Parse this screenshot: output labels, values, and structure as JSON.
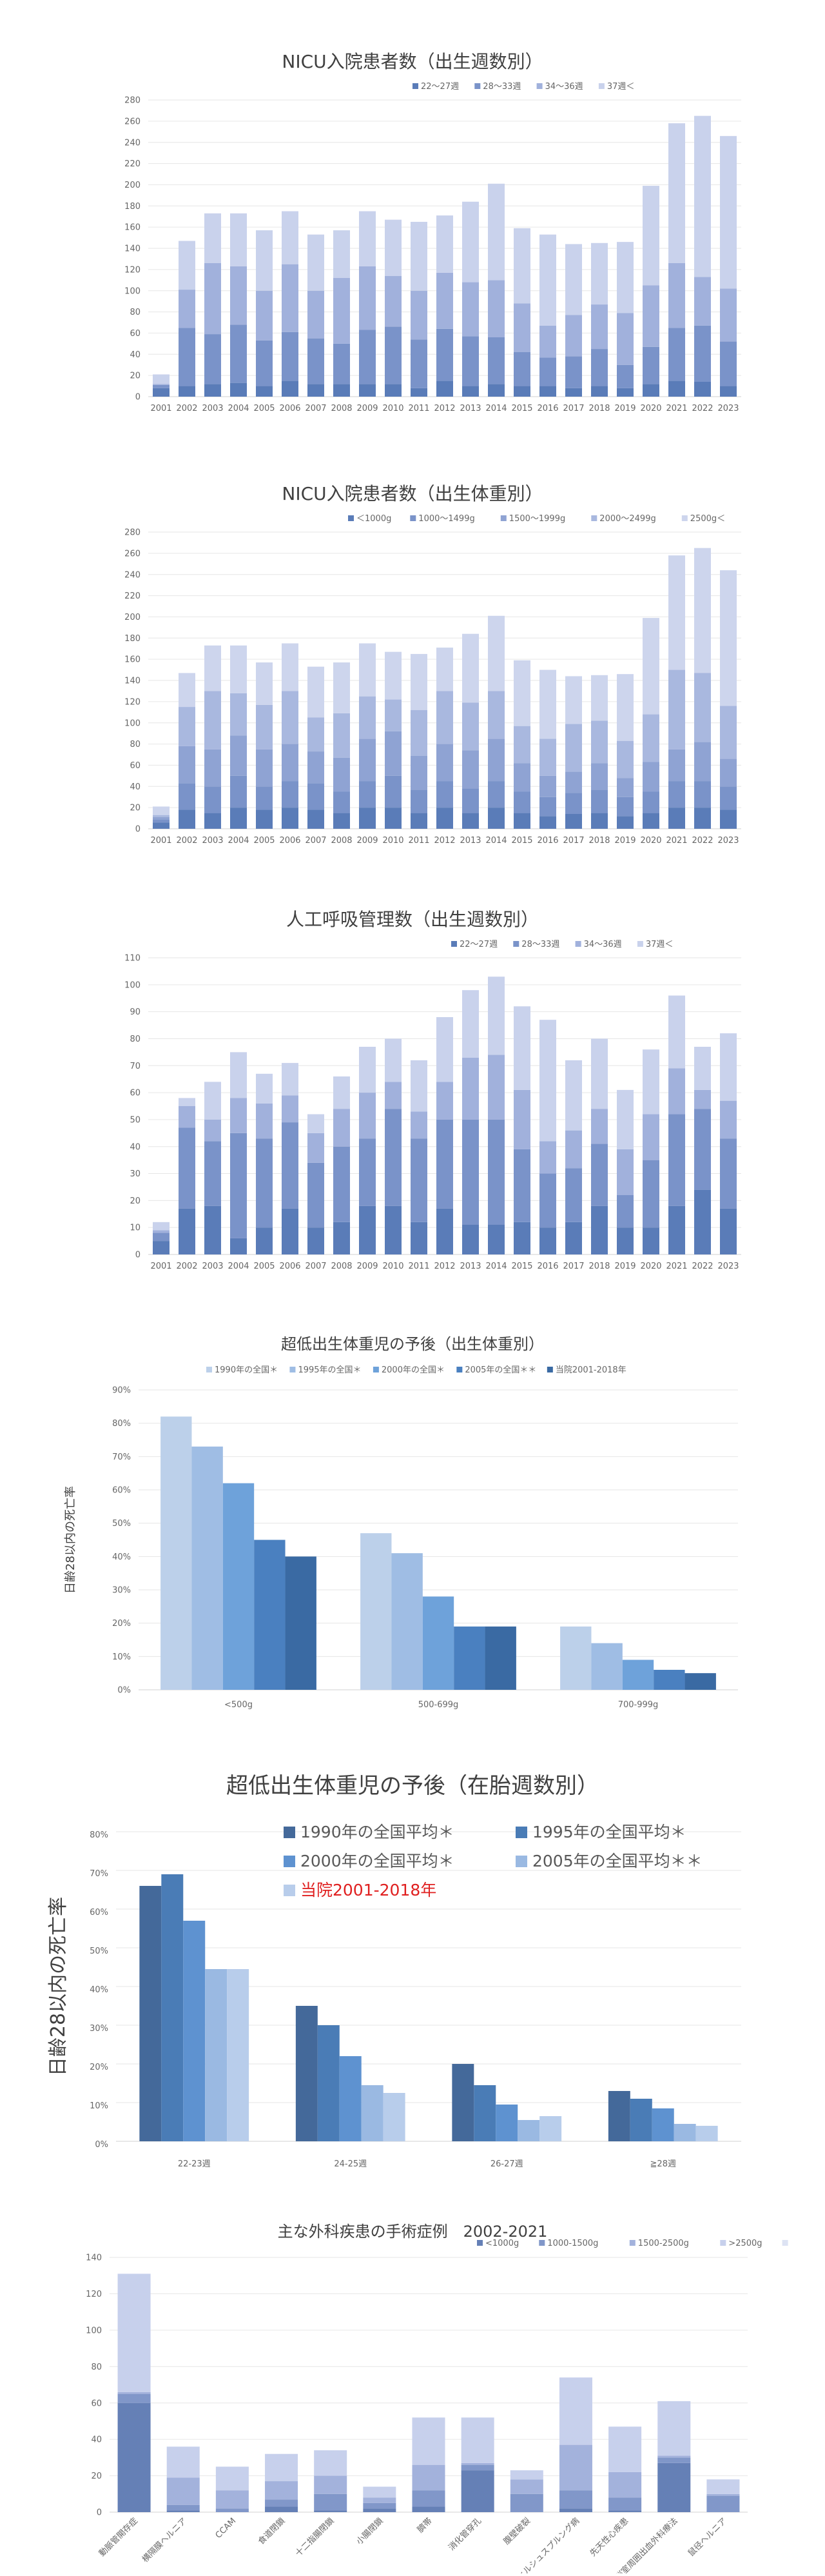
{
  "chart_data": [
    {
      "id": "c1",
      "type": "bar",
      "stacked": true,
      "title": "NICU入院患者数（出生週数別）",
      "xlabel": "",
      "ylabel": "",
      "ylim": [
        0,
        280
      ],
      "yticks": [
        0,
        20,
        40,
        60,
        80,
        100,
        120,
        140,
        160,
        180,
        200,
        220,
        240,
        260,
        280
      ],
      "grid": true,
      "legend_position": "top-right",
      "categories": [
        "2001",
        "2002",
        "2003",
        "2004",
        "2005",
        "2006",
        "2007",
        "2008",
        "2009",
        "2010",
        "2011",
        "2012",
        "2013",
        "2014",
        "2015",
        "2016",
        "2017",
        "2018",
        "2019",
        "2020",
        "2021",
        "2022",
        "2023"
      ],
      "series": [
        {
          "name": "22～27週",
          "color": "#5a7cb8",
          "values": [
            8,
            10,
            12,
            13,
            10,
            15,
            12,
            12,
            12,
            12,
            8,
            15,
            10,
            12,
            10,
            10,
            8,
            10,
            8,
            12,
            15,
            14,
            10
          ]
        },
        {
          "name": "28～33週",
          "color": "#7a93c9",
          "values": [
            3,
            55,
            47,
            55,
            43,
            46,
            43,
            38,
            51,
            54,
            46,
            49,
            47,
            44,
            32,
            27,
            30,
            35,
            22,
            35,
            50,
            53,
            42
          ]
        },
        {
          "name": "34～36週",
          "color": "#a1b1dc",
          "values": [
            1,
            36,
            67,
            55,
            47,
            64,
            45,
            62,
            60,
            48,
            46,
            53,
            51,
            54,
            46,
            30,
            39,
            42,
            49,
            58,
            61,
            46,
            50
          ]
        },
        {
          "name": "37週＜",
          "color": "#c9d2ec",
          "values": [
            9,
            46,
            47,
            50,
            57,
            50,
            53,
            45,
            52,
            53,
            65,
            54,
            76,
            91,
            71,
            86,
            67,
            58,
            67,
            94,
            132,
            152,
            144
          ]
        }
      ]
    },
    {
      "id": "c2",
      "type": "bar",
      "stacked": true,
      "title": "NICU入院患者数（出生体重別）",
      "xlabel": "",
      "ylabel": "",
      "ylim": [
        0,
        280
      ],
      "yticks": [
        0,
        20,
        40,
        60,
        80,
        100,
        120,
        140,
        160,
        180,
        200,
        220,
        240,
        260,
        280
      ],
      "grid": true,
      "legend_position": "top-right",
      "categories": [
        "2001",
        "2002",
        "2003",
        "2004",
        "2005",
        "2006",
        "2007",
        "2008",
        "2009",
        "2010",
        "2011",
        "2012",
        "2013",
        "2014",
        "2015",
        "2016",
        "2017",
        "2018",
        "2019",
        "2020",
        "2021",
        "2022",
        "2023"
      ],
      "series": [
        {
          "name": "＜1000g",
          "color": "#5a7cb8",
          "values": [
            6,
            18,
            15,
            20,
            18,
            20,
            18,
            15,
            20,
            20,
            15,
            20,
            15,
            20,
            15,
            12,
            14,
            15,
            12,
            15,
            20,
            20,
            18
          ]
        },
        {
          "name": "1000～1499g",
          "color": "#7a93c9",
          "values": [
            3,
            25,
            25,
            30,
            22,
            25,
            25,
            20,
            25,
            30,
            22,
            25,
            23,
            25,
            20,
            18,
            20,
            22,
            18,
            20,
            25,
            25,
            22
          ]
        },
        {
          "name": "1500～1999g",
          "color": "#8fa3d3",
          "values": [
            2,
            35,
            35,
            38,
            35,
            35,
            30,
            32,
            40,
            42,
            32,
            35,
            36,
            40,
            27,
            20,
            20,
            25,
            18,
            28,
            30,
            37,
            26
          ]
        },
        {
          "name": "2000～2499g",
          "color": "#a9b8df",
          "values": [
            2,
            37,
            55,
            40,
            42,
            50,
            32,
            42,
            40,
            30,
            43,
            50,
            45,
            45,
            35,
            35,
            45,
            40,
            35,
            45,
            75,
            65,
            50
          ]
        },
        {
          "name": "2500g＜",
          "color": "#cdd5ed",
          "values": [
            8,
            32,
            43,
            45,
            40,
            45,
            48,
            48,
            50,
            45,
            53,
            41,
            65,
            71,
            62,
            65,
            45,
            43,
            63,
            91,
            108,
            118,
            128
          ]
        }
      ]
    },
    {
      "id": "c3",
      "type": "bar",
      "stacked": true,
      "title": "人工呼吸管理数（出生週数別）",
      "xlabel": "",
      "ylabel": "",
      "ylim": [
        0,
        110
      ],
      "yticks": [
        0,
        10,
        20,
        30,
        40,
        50,
        60,
        70,
        80,
        90,
        100,
        110
      ],
      "grid": true,
      "legend_position": "top-right",
      "categories": [
        "2001",
        "2002",
        "2003",
        "2004",
        "2005",
        "2006",
        "2007",
        "2008",
        "2009",
        "2010",
        "2011",
        "2012",
        "2013",
        "2014",
        "2015",
        "2016",
        "2017",
        "2018",
        "2019",
        "2020",
        "2021",
        "2022",
        "2023"
      ],
      "series": [
        {
          "name": "22～27週",
          "color": "#5a7cb8",
          "values": [
            5,
            17,
            18,
            6,
            10,
            17,
            10,
            12,
            18,
            18,
            12,
            17,
            11,
            11,
            12,
            10,
            12,
            18,
            10,
            10,
            18,
            24,
            17
          ]
        },
        {
          "name": "28～33週",
          "color": "#7a93c9",
          "values": [
            3,
            30,
            24,
            39,
            33,
            32,
            24,
            28,
            25,
            36,
            31,
            33,
            39,
            39,
            27,
            20,
            20,
            23,
            12,
            25,
            34,
            30,
            26
          ]
        },
        {
          "name": "34～36週",
          "color": "#a1b1dc",
          "values": [
            1,
            8,
            8,
            13,
            13,
            10,
            11,
            14,
            17,
            10,
            10,
            14,
            23,
            24,
            22,
            12,
            14,
            13,
            17,
            17,
            17,
            7,
            14
          ]
        },
        {
          "name": "37週＜",
          "color": "#c9d2ec",
          "values": [
            3,
            3,
            14,
            17,
            11,
            12,
            7,
            12,
            17,
            16,
            19,
            24,
            25,
            29,
            31,
            45,
            26,
            26,
            22,
            24,
            27,
            16,
            25
          ]
        }
      ]
    },
    {
      "id": "c4",
      "type": "bar",
      "title": "超低出生体重児の予後（出生体重別）",
      "xlabel": "",
      "ylabel": "日齢28以内の死亡率",
      "ylim": [
        0,
        90
      ],
      "yticks": [
        "0%",
        "10%",
        "20%",
        "30%",
        "40%",
        "50%",
        "60%",
        "70%",
        "80%",
        "90%"
      ],
      "grid": true,
      "legend_position": "top",
      "categories": [
        "<500g",
        "500-699g",
        "700-999g"
      ],
      "series": [
        {
          "name": "1990年の全国＊",
          "color": "#bcd0ea",
          "values": [
            82,
            47,
            19
          ]
        },
        {
          "name": "1995年の全国＊",
          "color": "#9fbde4",
          "values": [
            73,
            41,
            14
          ]
        },
        {
          "name": "2000年の全国＊",
          "color": "#6ea2da",
          "values": [
            62,
            28,
            9
          ]
        },
        {
          "name": "2005年の全国＊＊",
          "color": "#4a80c0",
          "values": [
            45,
            19,
            6
          ]
        },
        {
          "name": "当院2001-2018年",
          "color": "#3a6aa3",
          "values": [
            40,
            19,
            5
          ]
        }
      ]
    },
    {
      "id": "c5",
      "type": "bar",
      "title": "超低出生体重児の予後（在胎週数別）",
      "xlabel": "",
      "ylabel": "日齢28以内の死亡率",
      "ylim": [
        0,
        80
      ],
      "yticks": [
        "0%",
        "10%",
        "20%",
        "30%",
        "40%",
        "50%",
        "60%",
        "70%",
        "80%"
      ],
      "grid": true,
      "legend_position": "top-right",
      "categories": [
        "22-23週",
        "24-25週",
        "26-27週",
        "≧28週"
      ],
      "series": [
        {
          "name": "1990年の全国平均＊",
          "color": "#44699a",
          "values": [
            66,
            35,
            20,
            13
          ]
        },
        {
          "name": "1995年の全国平均＊",
          "color": "#4a7cb6",
          "values": [
            69,
            30,
            14.5,
            11
          ]
        },
        {
          "name": "2000年の全国平均＊",
          "color": "#5e92d0",
          "values": [
            57,
            22,
            9.5,
            8.5
          ]
        },
        {
          "name": "2005年の全国平均＊＊",
          "color": "#9ab9e2",
          "values": [
            44.5,
            14.5,
            5.5,
            4.5
          ]
        },
        {
          "name": "当院2001-2018年",
          "color": "#b8cdeb",
          "values": [
            44.5,
            12.5,
            6.5,
            4
          ],
          "label_color": "#e02020"
        }
      ]
    },
    {
      "id": "c6",
      "type": "bar",
      "stacked": true,
      "title": "主な外科疾患の手術症例　2002-2021",
      "xlabel": "",
      "ylabel": "",
      "ylim": [
        0,
        140
      ],
      "yticks": [
        0,
        20,
        40,
        60,
        80,
        100,
        120,
        140
      ],
      "grid": true,
      "legend_position": "top-right",
      "categories": [
        "動脈管開存症",
        "横隔膜ヘルニア",
        "CCAM",
        "食道閉鎖",
        "十二指腸閉鎖",
        "小腸閉鎖",
        "臍帯",
        "消化管穿孔",
        "腹壁破裂",
        "ヒルシュスプルング病",
        "先天性心疾患",
        "脳室周囲出血外科療法",
        "鼠径ヘルニア"
      ],
      "series": [
        {
          "name": "<1000g",
          "color": "#6580b6",
          "values": [
            60,
            1,
            0,
            3,
            1,
            2,
            3,
            23,
            0,
            2,
            1,
            27,
            0
          ]
        },
        {
          "name": "1000-1500g",
          "color": "#8197c9",
          "values": [
            5,
            3,
            2,
            4,
            9,
            3,
            9,
            3,
            10,
            10,
            7,
            3,
            9
          ]
        },
        {
          "name": "1500-2500g",
          "color": "#a3b2dc",
          "values": [
            1,
            15,
            10,
            10,
            10,
            3,
            14,
            1,
            8,
            25,
            14,
            1,
            1
          ]
        },
        {
          "name": ">2500g",
          "color": "#c7d0ec",
          "values": [
            65,
            17,
            13,
            15,
            14,
            6,
            26,
            25,
            5,
            37,
            25,
            30,
            8
          ]
        },
        {
          "name": "",
          "color": "#dde3f3",
          "values": [
            0,
            0,
            0,
            0,
            0,
            0,
            0,
            0,
            0,
            0,
            0,
            0,
            0
          ]
        }
      ]
    }
  ]
}
